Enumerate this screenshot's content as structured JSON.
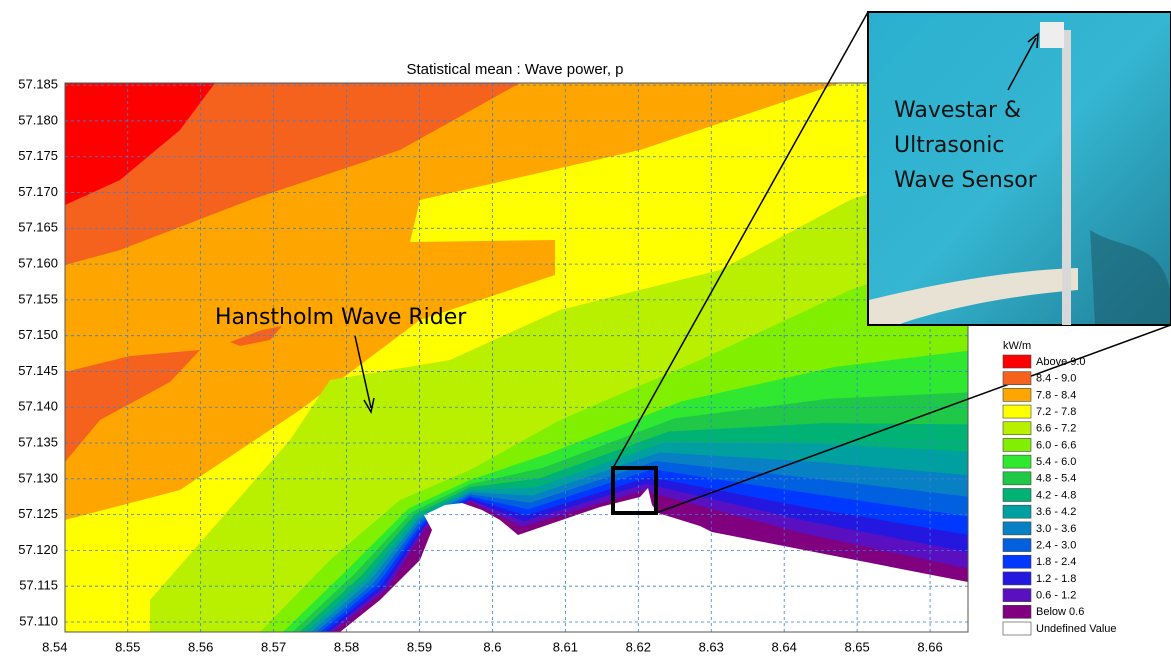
{
  "chart_data": {
    "type": "contour",
    "title": "Statistical mean : Wave power, p",
    "xlim": [
      8.5414,
      8.6652
    ],
    "ylim": [
      57.1086,
      57.1853
    ],
    "xticks": [
      8.54,
      8.55,
      8.56,
      8.57,
      8.58,
      8.59,
      8.6,
      8.61,
      8.62,
      8.63,
      8.64,
      8.65,
      8.66
    ],
    "yticks": [
      {
        "value": 57.11,
        "label": "57.110"
      },
      57.115,
      {
        "value": 57.12,
        "label": "57.120"
      },
      57.125,
      {
        "value": 57.13,
        "label": "57.130"
      },
      57.135,
      {
        "value": 57.14,
        "label": "57.140"
      },
      57.145,
      {
        "value": 57.15,
        "label": "57.150"
      },
      57.155,
      {
        "value": 57.16,
        "label": "57.160"
      },
      57.165,
      {
        "value": 57.17,
        "label": "57.170"
      },
      57.175,
      {
        "value": 57.18,
        "label": "57.180"
      },
      57.185
    ],
    "grid": true,
    "grid_color": "#3a7fd8",
    "legend": {
      "title": "kW/m",
      "position": "right",
      "items": [
        {
          "label": "Above 9.0",
          "color": "#ff0000"
        },
        {
          "label": "8.4 - 9.0",
          "color": "#f4621e"
        },
        {
          "label": "7.8 - 8.4",
          "color": "#ffa500"
        },
        {
          "label": "7.2 - 7.8",
          "color": "#ffff00"
        },
        {
          "label": "6.6 - 7.2",
          "color": "#b8f000"
        },
        {
          "label": "6.0 - 6.6",
          "color": "#80f000"
        },
        {
          "label": "5.4 - 6.0",
          "color": "#30e830"
        },
        {
          "label": "4.8 - 5.4",
          "color": "#20c848"
        },
        {
          "label": "4.2 - 4.8",
          "color": "#00b274"
        },
        {
          "label": "3.6 - 4.2",
          "color": "#00a0a0"
        },
        {
          "label": "3.0 - 3.6",
          "color": "#0880c4"
        },
        {
          "label": "2.4 - 3.0",
          "color": "#0060e0"
        },
        {
          "label": "1.8 - 2.4",
          "color": "#0038ff"
        },
        {
          "label": "1.2 - 1.8",
          "color": "#2418e0"
        },
        {
          "label": "0.6 - 1.2",
          "color": "#5a10c0"
        },
        {
          "label": "Below 0.6",
          "color": "#800080"
        },
        {
          "label": "Undefined Value",
          "color": "#ffffff"
        }
      ]
    },
    "annotation": "Hanstholm Wave Rider",
    "inset_label": [
      "Wavestar  &",
      "Ultrasonic",
      "Wave Sensor"
    ]
  }
}
